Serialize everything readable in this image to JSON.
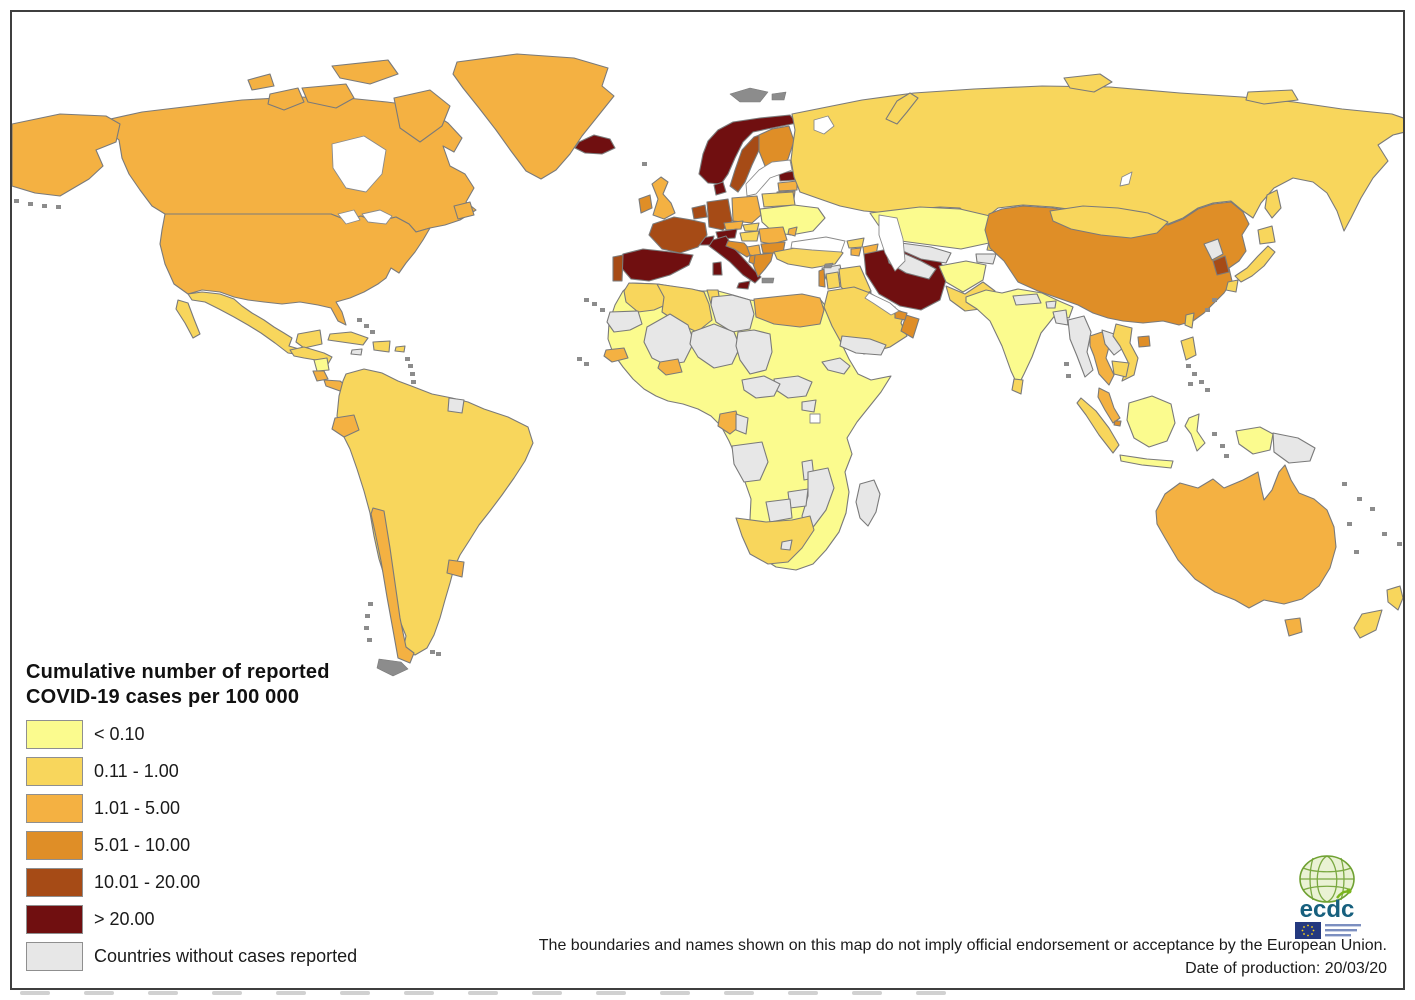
{
  "legend": {
    "title_lines": [
      "Cumulative number of reported",
      "COVID-19 cases per 100 000"
    ],
    "classes": [
      {
        "id": "c1",
        "label": "< 0.10",
        "color": "#FBFB8E"
      },
      {
        "id": "c2",
        "label": "0.11 - 1.00",
        "color": "#F8D65C"
      },
      {
        "id": "c3",
        "label": "1.01 - 5.00",
        "color": "#F4B142"
      },
      {
        "id": "c4",
        "label": "5.01 - 10.00",
        "color": "#DF8E27"
      },
      {
        "id": "c5",
        "label": "10.01 - 20.00",
        "color": "#A64B16"
      },
      {
        "id": "c6",
        "label": "> 20.00",
        "color": "#700F10"
      },
      {
        "id": "c7",
        "label": "Countries without cases reported",
        "color": "#E7E7E7"
      }
    ]
  },
  "footer": {
    "disclaimer": "The boundaries and names shown on this map do not imply official endorsement or acceptance by the European Union.",
    "date_line": "Date of production: 20/03/20"
  },
  "logo": {
    "text": "ecdc"
  },
  "map": {
    "ocean": "#FFFFFF",
    "stroke": "#7A7A7A",
    "island_gray": "#8C8C8C",
    "countries": {
      "canada": "c3",
      "alaska": "c3",
      "canadian_arctic": "c3",
      "greenland": "c3",
      "newfoundland": "c3",
      "usa": "c3",
      "mexico": "c2",
      "central_america": "c2",
      "nicaragua": "c1",
      "costa_rica": "c3",
      "panama": "c3",
      "cuba": "c2",
      "hispaniola": "c2",
      "jamaica": "c7",
      "puerto_rico": "c2",
      "south_america": "c2",
      "ecuador": "c3",
      "chile": "c3",
      "uruguay": "c3",
      "suriname": "c7",
      "africa": "c1",
      "morocco": "c2",
      "western_sahara": "c7",
      "algeria": "c2",
      "tunisia": "c2",
      "libya": "c7",
      "egypt": "c3",
      "mali": "c7",
      "niger": "c7",
      "chad": "c7",
      "south_sudan": "c7",
      "eritrea": "c7",
      "car": "c7",
      "senegal": "c3",
      "burkina_faso": "c3",
      "gabon": "c3",
      "congo": "c7",
      "uganda": "c7",
      "angola": "c7",
      "malawi": "c7",
      "mozambique": "c7",
      "zimbabwe": "c7",
      "botswana": "c7",
      "south_africa": "c2",
      "lesotho": "c7",
      "madagascar": "c7",
      "iceland": "c6",
      "norway": "c6",
      "sweden": "c5",
      "finland": "c4",
      "estonia": "c6",
      "latvia": "c3",
      "lithuania": "c3",
      "denmark": "c6",
      "uk": "c3",
      "ireland": "c4",
      "benelux": "c5",
      "germany": "c5",
      "poland": "c3",
      "belarus": "c2",
      "ukraine": "c1",
      "moldova": "c3",
      "czechia": "c3",
      "slovakia": "c2",
      "hungary": "c2",
      "austria": "c6",
      "switzerland": "c6",
      "france": "c5",
      "spain": "c6",
      "portugal": "c5",
      "italy": "c6",
      "croatia": "c4",
      "serbia": "c3",
      "romania": "c3",
      "bulgaria": "c4",
      "greece": "c4",
      "albania": "c4",
      "russia": "c2",
      "turkey": "c2",
      "georgia": "c2",
      "azerbaijan": "c3",
      "armenia": "c3",
      "syria": "c7",
      "israel_lebanon": "c4",
      "jordan": "c2",
      "iraq": "c2",
      "iran": "c6",
      "kuwait": "c4",
      "saudi_arabia": "c2",
      "yemen": "c7",
      "oman": "c4",
      "uae": "c4",
      "qatar": "c4",
      "kazakhstan": "c1",
      "uzbekistan": "c7",
      "turkmenistan": "c7",
      "kyrgyzstan": "c2",
      "tajikistan": "c7",
      "afghanistan": "c1",
      "pakistan": "c2",
      "india": "c1",
      "nepal": "c7",
      "bhutan": "c7",
      "bangladesh": "c7",
      "sri_lanka": "c2",
      "china": "c4",
      "mongolia": "c2",
      "taiwan": "c2",
      "north_korea": "c7",
      "south_korea": "c5",
      "japan": "c2",
      "myanmar": "c7",
      "thailand": "c3",
      "laos": "c7",
      "vietnam": "c2",
      "cambodia": "c2",
      "malaysia": "c3",
      "singapore": "c4",
      "indonesia_sumatra": "c2",
      "indonesia": "c1",
      "papua_new_guinea": "c7",
      "philippines_luzon": "c2",
      "australia": "c3",
      "new_zealand": "c2"
    }
  }
}
